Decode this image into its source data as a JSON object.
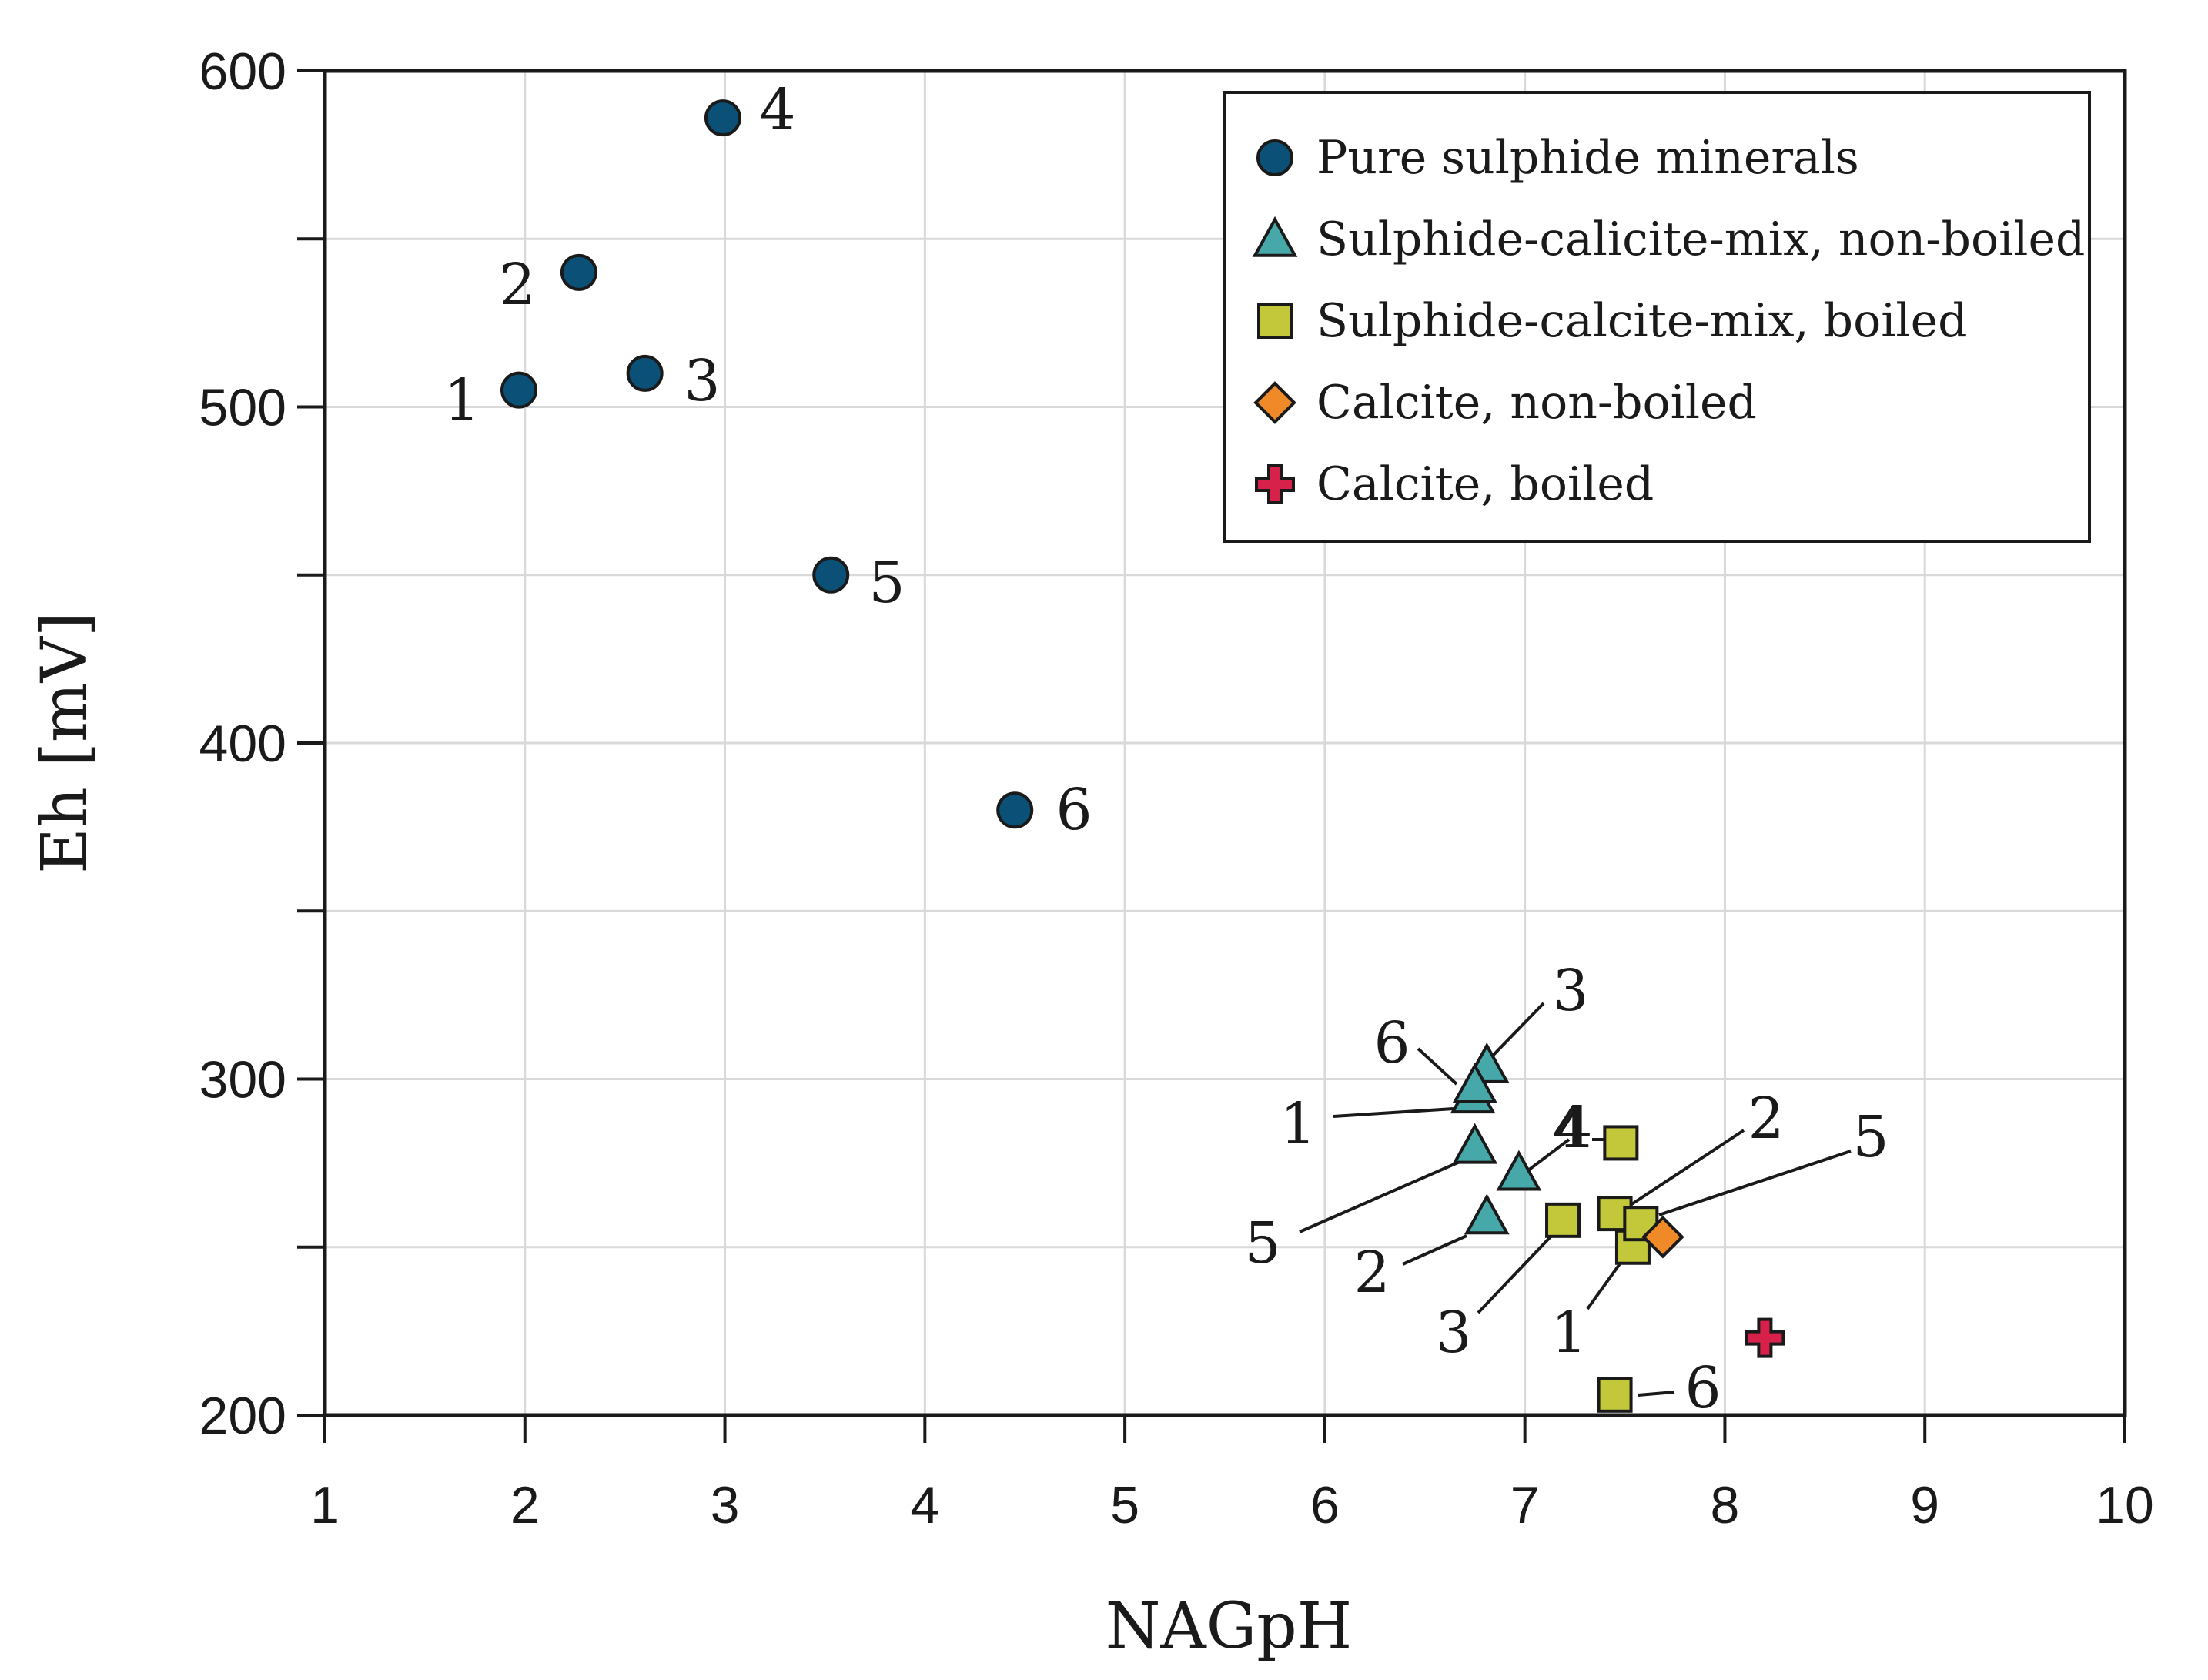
{
  "chart_data": {
    "type": "scatter",
    "title": "",
    "xlabel": "NAGpH",
    "ylabel": "Eh [mV]",
    "xlim": [
      1,
      10
    ],
    "ylim": [
      200,
      600
    ],
    "x_ticks": [
      1,
      2,
      3,
      4,
      5,
      6,
      7,
      8,
      9,
      10
    ],
    "y_ticks": [
      200,
      300,
      400,
      500,
      600
    ],
    "y_minor_ticks": [
      250,
      350,
      450,
      550
    ],
    "grid": true,
    "legend_position": "top-right",
    "series": [
      {
        "name": "Pure sulphide minerals",
        "marker": "circle",
        "color": "#0b5077",
        "points": [
          {
            "label": "1",
            "x": 1.97,
            "y": 505
          },
          {
            "label": "2",
            "x": 2.27,
            "y": 540
          },
          {
            "label": "3",
            "x": 2.6,
            "y": 510
          },
          {
            "label": "4",
            "x": 2.99,
            "y": 586
          },
          {
            "label": "5",
            "x": 3.53,
            "y": 450
          },
          {
            "label": "6",
            "x": 4.45,
            "y": 380
          }
        ]
      },
      {
        "name": "Sulphide-calicite-mix, non-boiled",
        "marker": "triangle",
        "color": "#46a8a8",
        "points": [
          {
            "label": "1",
            "x": 6.74,
            "y": 295
          },
          {
            "label": "2",
            "x": 6.81,
            "y": 259
          },
          {
            "label": "3",
            "x": 6.81,
            "y": 304
          },
          {
            "label": "4",
            "x": 6.97,
            "y": 272
          },
          {
            "label": "5",
            "x": 6.75,
            "y": 280
          },
          {
            "label": "6",
            "x": 6.75,
            "y": 298
          }
        ]
      },
      {
        "name": "Sulphide-calcite-mix, boiled",
        "marker": "square",
        "color": "#c2c83a",
        "points": [
          {
            "label": "1",
            "x": 7.54,
            "y": 250
          },
          {
            "label": "2",
            "x": 7.45,
            "y": 260
          },
          {
            "label": "3",
            "x": 7.19,
            "y": 258
          },
          {
            "label": "4",
            "x": 7.48,
            "y": 281
          },
          {
            "label": "5",
            "x": 7.58,
            "y": 257
          },
          {
            "label": "6",
            "x": 7.45,
            "y": 206
          }
        ]
      },
      {
        "name": "Calcite, non-boiled",
        "marker": "diamond",
        "color": "#f08a28",
        "points": [
          {
            "label": "",
            "x": 7.69,
            "y": 253
          }
        ]
      },
      {
        "name": "Calcite, boiled",
        "marker": "plus",
        "color": "#d8214a",
        "points": [
          {
            "label": "",
            "x": 8.2,
            "y": 223
          }
        ]
      }
    ]
  }
}
